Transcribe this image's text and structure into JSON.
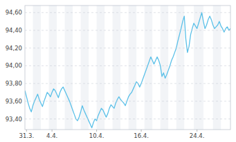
{
  "chart_data": {
    "type": "line",
    "categories": [
      null,
      "31.3.",
      null,
      null,
      null,
      null,
      null,
      null,
      null,
      null,
      null,
      null,
      null,
      null,
      null,
      null,
      null,
      "4.4.",
      null,
      null,
      null,
      null,
      null,
      null,
      null,
      null,
      null,
      null,
      null,
      null,
      null,
      null,
      null,
      null,
      null,
      null,
      null,
      null,
      null,
      null,
      null,
      null,
      null,
      null,
      null,
      "10.4.",
      null,
      null,
      null,
      null,
      null,
      null,
      null,
      null,
      null,
      null,
      null,
      null,
      null,
      null,
      null,
      null,
      null,
      null,
      null,
      null,
      null,
      null,
      null,
      null,
      null,
      null,
      null,
      "16.4.",
      null,
      null,
      null,
      null,
      null,
      null,
      null,
      null,
      null,
      null,
      null,
      null,
      null,
      null,
      null,
      null,
      null,
      null,
      null,
      null,
      null,
      null,
      null,
      null,
      null,
      null,
      null,
      null,
      null,
      null,
      null,
      null,
      null,
      null,
      "24.4.",
      null,
      null,
      null,
      null,
      null,
      null,
      null,
      null,
      null,
      null,
      null,
      null,
      null,
      null,
      null,
      null,
      null,
      null,
      null,
      null,
      null
    ],
    "values": [
      93.72,
      93.65,
      93.58,
      93.52,
      93.48,
      93.55,
      93.6,
      93.64,
      93.68,
      93.62,
      93.58,
      93.54,
      93.6,
      93.65,
      93.7,
      93.68,
      93.65,
      93.7,
      93.74,
      93.72,
      93.68,
      93.64,
      93.7,
      93.74,
      93.76,
      93.72,
      93.68,
      93.64,
      93.6,
      93.55,
      93.5,
      93.45,
      93.4,
      93.38,
      93.42,
      93.48,
      93.55,
      93.5,
      93.46,
      93.42,
      93.38,
      93.34,
      93.3,
      93.36,
      93.4,
      93.38,
      93.44,
      93.48,
      93.52,
      93.5,
      93.46,
      93.42,
      93.46,
      93.52,
      93.56,
      93.54,
      93.52,
      93.58,
      93.62,
      93.65,
      93.62,
      93.6,
      93.58,
      93.55,
      93.6,
      93.65,
      93.68,
      93.7,
      93.74,
      93.78,
      93.82,
      93.8,
      93.76,
      93.8,
      93.85,
      93.9,
      93.95,
      94.0,
      94.05,
      94.1,
      94.06,
      94.02,
      94.06,
      94.1,
      94.06,
      94.0,
      93.88,
      93.92,
      93.86,
      93.9,
      93.95,
      94.0,
      94.06,
      94.1,
      94.15,
      94.2,
      94.28,
      94.35,
      94.42,
      94.5,
      94.56,
      94.3,
      94.15,
      94.22,
      94.35,
      94.42,
      94.48,
      94.45,
      94.42,
      94.48,
      94.54,
      94.6,
      94.5,
      94.42,
      94.46,
      94.52,
      94.56,
      94.52,
      94.46,
      94.42,
      94.44,
      94.46,
      94.5,
      94.45,
      94.42,
      94.38,
      94.42,
      94.44,
      94.4,
      94.42
    ],
    "color": "#5bc0e8",
    "ylim": [
      93.28,
      94.68
    ],
    "yticks": [
      {
        "value": 93.4,
        "label": "93,40"
      },
      {
        "value": 93.6,
        "label": "93,60"
      },
      {
        "value": 93.8,
        "label": "93,80"
      },
      {
        "value": 94.0,
        "label": "94,00"
      },
      {
        "value": 94.2,
        "label": "94,20"
      },
      {
        "value": 94.4,
        "label": "94,40"
      },
      {
        "value": 94.6,
        "label": "94,60"
      }
    ],
    "grid": true,
    "bands": [
      [
        0,
        5
      ],
      [
        10,
        15
      ],
      [
        20,
        25
      ],
      [
        30,
        35
      ],
      [
        40,
        45
      ],
      [
        50,
        55
      ],
      [
        60,
        65
      ],
      [
        70,
        75
      ],
      [
        80,
        85
      ],
      [
        90,
        95
      ],
      [
        100,
        106
      ],
      [
        112,
        118
      ],
      [
        123,
        129
      ]
    ]
  }
}
